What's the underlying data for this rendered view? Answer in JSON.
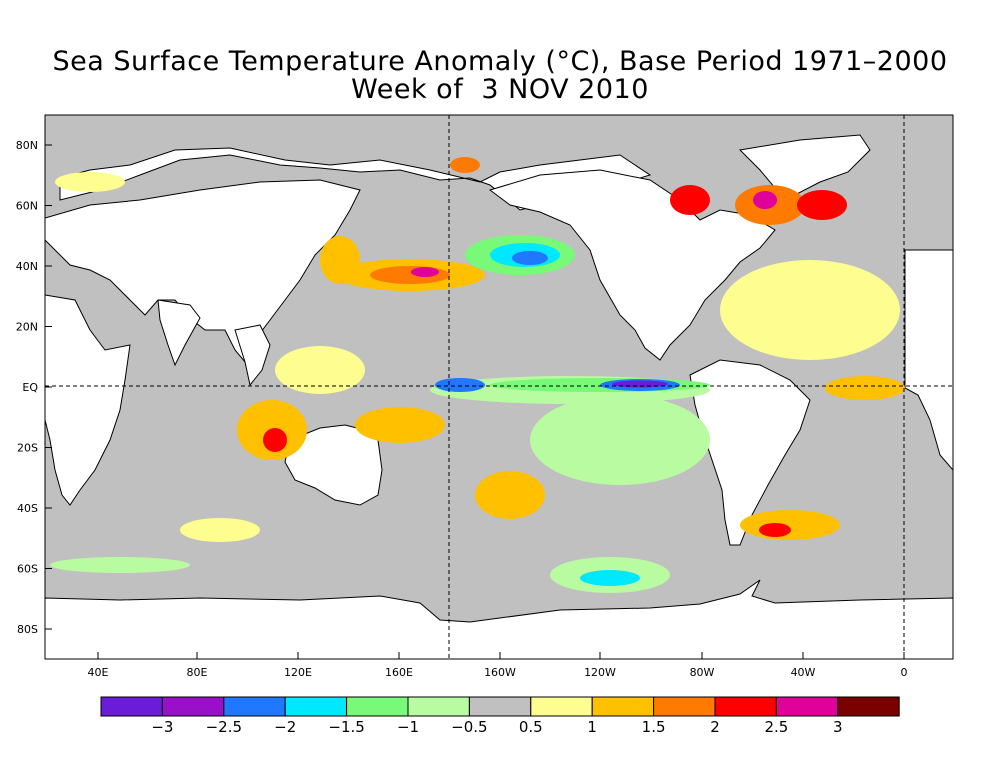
{
  "title": "Sea Surface Temperature Anomaly (°C), Base Period 1971–2000",
  "subtitle": "Week of  3 NOV 2010",
  "lat_labels": [
    "80N",
    "60N",
    "40N",
    "20N",
    "EQ",
    "20S",
    "40S",
    "60S",
    "80S"
  ],
  "lon_labels": [
    "40E",
    "80E",
    "120E",
    "160E",
    "160W",
    "120W",
    "80W",
    "40W",
    "0"
  ],
  "colorbar": {
    "colors": [
      "#6a1cd8",
      "#9a0fc9",
      "#1f78ff",
      "#00e8ff",
      "#78fa78",
      "#b9fba0",
      "#c0c0c0",
      "#fefe90",
      "#ffc000",
      "#ff7a00",
      "#ff0000",
      "#e0009a",
      "#7a0000"
    ],
    "labels": [
      "−3",
      "−2.5",
      "−2",
      "−1.5",
      "−1",
      "−0.5",
      "0.5",
      "1",
      "1.5",
      "2",
      "2.5",
      "3"
    ]
  },
  "colors": {
    "land": "#ffffff",
    "neutral": "#c0c0c0",
    "gridline": "#000000"
  }
}
